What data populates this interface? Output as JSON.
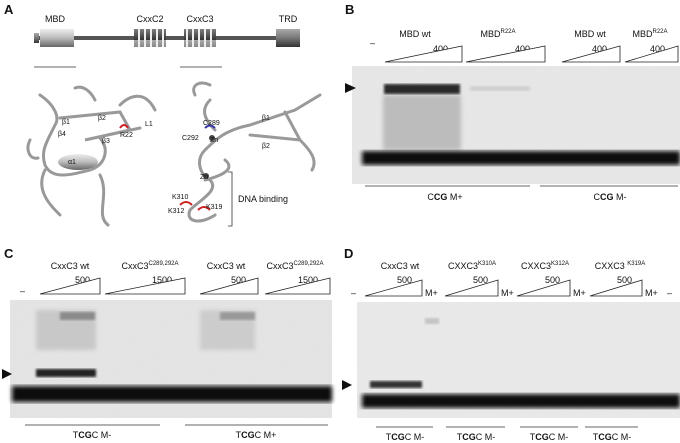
{
  "A": {
    "label": "A",
    "domains": {
      "mbd": "MBD",
      "cxxc2": "CxxC2",
      "cxxc3": "CxxC3",
      "trd": "TRD"
    },
    "mbd_structure": {
      "beta1": "β1",
      "beta2": "β2",
      "beta4": "β4",
      "beta3": "β3",
      "alpha1": "α1",
      "r22": "R22",
      "l1": "L1"
    },
    "cxxc_structure": {
      "c289": "C289",
      "c292": "C292",
      "zn1": "Zn",
      "beta1": "β1",
      "beta2": "β2",
      "zn2": "Zn",
      "k310": "K310",
      "k312": "K312",
      "k319": "K319",
      "dna_binding": "DNA binding"
    }
  },
  "B": {
    "label": "B",
    "dash": "–",
    "groups": [
      {
        "name": "MBD wt",
        "max": "400"
      },
      {
        "name": "MBD",
        "sup": "R22A",
        "max": "400"
      },
      {
        "name": "MBD wt",
        "max": "400"
      },
      {
        "name": "MBD",
        "sup": "R22A",
        "max": "400"
      }
    ],
    "probes": [
      {
        "pre": "C",
        "bold": "CG",
        "post": " M+"
      },
      {
        "pre": "C",
        "bold": "CG",
        "post": " M-"
      }
    ]
  },
  "C": {
    "label": "C",
    "dash": "–",
    "groups": [
      {
        "name": "CxxC3 wt",
        "max": "500"
      },
      {
        "name": "CxxC3",
        "sup": "C289,292A",
        "max": "1500"
      },
      {
        "name": "CxxC3 wt",
        "max": "500"
      },
      {
        "name": "CxxC3",
        "sup": "C289,292A",
        "max": "1500"
      }
    ],
    "probes": [
      {
        "pre": "T",
        "bold": "CG",
        "post": "C M-"
      },
      {
        "pre": "T",
        "bold": "CG",
        "post": "C M+"
      }
    ]
  },
  "D": {
    "label": "D",
    "dash": "–",
    "groups": [
      {
        "name": "CxxC3 wt",
        "max": "500",
        "extra": "M+"
      },
      {
        "name": "CXXC3",
        "sup": "K310A",
        "max": "500",
        "extra": "M+"
      },
      {
        "name": "CXXC3",
        "sup": "K312A",
        "max": "500",
        "extra": "M+"
      },
      {
        "name": "CXXC3 ",
        "sup": "K319A",
        "max": "500",
        "extra": "M+"
      }
    ],
    "probes": [
      {
        "pre": "T",
        "bold": "CG",
        "post": "C M-"
      },
      {
        "pre": "T",
        "bold": "CG",
        "post": "C M-"
      },
      {
        "pre": "T",
        "bold": "CG",
        "post": "C M-"
      },
      {
        "pre": "T",
        "bold": "CG",
        "post": "C M-"
      }
    ]
  }
}
